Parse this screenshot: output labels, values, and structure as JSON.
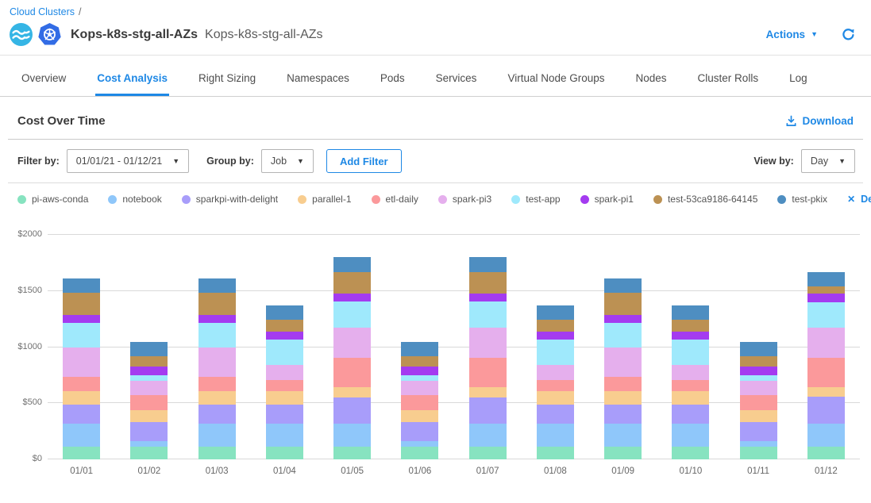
{
  "breadcrumb": {
    "link": "Cloud Clusters",
    "separator": "/"
  },
  "header": {
    "title": "Kops-k8s-stg-all-AZs",
    "subtitle": "Kops-k8s-stg-all-AZs",
    "actions_label": "Actions",
    "icons": [
      "ocean-icon",
      "kubernetes-icon",
      "refresh-icon"
    ]
  },
  "tabs": {
    "items": [
      {
        "label": "Overview",
        "active": false
      },
      {
        "label": "Cost Analysis",
        "active": true
      },
      {
        "label": "Right Sizing",
        "active": false
      },
      {
        "label": "Namespaces",
        "active": false
      },
      {
        "label": "Pods",
        "active": false
      },
      {
        "label": "Services",
        "active": false
      },
      {
        "label": "Virtual Node Groups",
        "active": false
      },
      {
        "label": "Nodes",
        "active": false
      },
      {
        "label": "Cluster Rolls",
        "active": false
      },
      {
        "label": "Log",
        "active": false
      }
    ]
  },
  "section": {
    "title": "Cost Over Time",
    "download_label": "Download"
  },
  "filters": {
    "filter_by_label": "Filter by:",
    "date_range_value": "01/01/21 - 01/12/21",
    "group_by_label": "Group by:",
    "group_by_value": "Job",
    "add_filter_label": "Add Filter",
    "view_by_label": "View by:",
    "view_by_value": "Day"
  },
  "legend": {
    "deselect_all_label": "Deselect All",
    "items": [
      {
        "label": "pi-aws-conda",
        "color": "#87E3C0"
      },
      {
        "label": "notebook",
        "color": "#8FC7FA"
      },
      {
        "label": "sparkpi-with-delight",
        "color": "#A89DFA"
      },
      {
        "label": "parallel-1",
        "color": "#F8CD8F"
      },
      {
        "label": "etl-daily",
        "color": "#FB999B"
      },
      {
        "label": "spark-pi3",
        "color": "#E5AFED"
      },
      {
        "label": "test-app",
        "color": "#9FE9FC"
      },
      {
        "label": "spark-pi1",
        "color": "#A43BF0"
      },
      {
        "label": "test-53ca9186-64145",
        "color": "#BC9153"
      },
      {
        "label": "test-pkix",
        "color": "#4E8EC1"
      }
    ]
  },
  "colors": {
    "accent_blue": "#1E88E5",
    "kubernetes_blue": "#326CE5",
    "ocean_blue": "#35B5E5",
    "gridline": "#d9d9d9"
  },
  "chart_data": {
    "type": "bar",
    "stacked": true,
    "title": "Cost Over Time",
    "xlabel": "",
    "ylabel": "",
    "view_by": "Day",
    "legend_position": "top",
    "grid": true,
    "ylim": [
      0,
      2000
    ],
    "yticks": [
      "$0",
      "$500",
      "$1000",
      "$1500",
      "$2000"
    ],
    "categories": [
      "01/01",
      "01/02",
      "01/03",
      "01/04",
      "01/05",
      "01/06",
      "01/07",
      "01/08",
      "01/09",
      "01/10",
      "01/11",
      "01/12"
    ],
    "series": [
      {
        "name": "pi-aws-conda",
        "color": "#87E3C0",
        "values": [
          115,
          115,
          115,
          115,
          115,
          115,
          115,
          115,
          115,
          115,
          115,
          115
        ]
      },
      {
        "name": "notebook",
        "color": "#8FC7FA",
        "values": [
          200,
          45,
          200,
          200,
          200,
          45,
          200,
          200,
          200,
          200,
          45,
          200
        ]
      },
      {
        "name": "sparkpi-with-delight",
        "color": "#A89DFA",
        "values": [
          175,
          175,
          175,
          175,
          235,
          175,
          235,
          175,
          175,
          175,
          175,
          240
        ]
      },
      {
        "name": "parallel-1",
        "color": "#F8CD8F",
        "values": [
          115,
          105,
          115,
          115,
          95,
          105,
          95,
          115,
          115,
          115,
          105,
          90
        ]
      },
      {
        "name": "etl-daily",
        "color": "#FB999B",
        "values": [
          130,
          130,
          130,
          105,
          260,
          130,
          260,
          105,
          130,
          105,
          130,
          260
        ]
      },
      {
        "name": "spark-pi3",
        "color": "#E5AFED",
        "values": [
          265,
          130,
          265,
          130,
          270,
          130,
          270,
          130,
          265,
          130,
          130,
          270
        ]
      },
      {
        "name": "test-app",
        "color": "#9FE9FC",
        "values": [
          215,
          50,
          215,
          230,
          235,
          50,
          235,
          230,
          215,
          230,
          50,
          225
        ]
      },
      {
        "name": "spark-pi1",
        "color": "#A43BF0",
        "values": [
          70,
          80,
          70,
          70,
          70,
          80,
          70,
          70,
          70,
          70,
          80,
          80
        ]
      },
      {
        "name": "test-53ca9186-64145",
        "color": "#BC9153",
        "values": [
          200,
          90,
          200,
          105,
          190,
          90,
          190,
          105,
          200,
          105,
          90,
          60
        ]
      },
      {
        "name": "test-pkix",
        "color": "#4E8EC1",
        "values": [
          130,
          130,
          130,
          125,
          130,
          130,
          130,
          125,
          130,
          125,
          130,
          130
        ]
      }
    ],
    "totals": [
      1615,
      1050,
      1615,
      1370,
      1800,
      1050,
      1800,
      1370,
      1615,
      1370,
      1050,
      1670
    ]
  }
}
